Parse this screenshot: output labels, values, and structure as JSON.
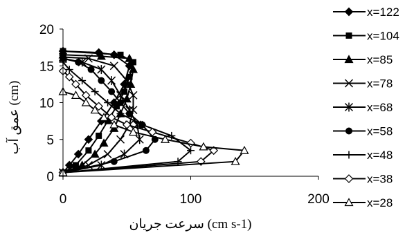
{
  "chart_data": {
    "type": "scatter",
    "title": "",
    "xlabel": "سرعت جریان (cm s-1)",
    "ylabel": "عمق آب (cm)",
    "xlim": [
      0,
      200
    ],
    "ylim": [
      0,
      20
    ],
    "xticks": [
      "0",
      "100",
      "200"
    ],
    "yticks": [
      "0",
      "5",
      "10",
      "15",
      "20"
    ],
    "grid": false,
    "legend_position": "right",
    "series": [
      {
        "name": "x=122",
        "marker": "diamond-filled",
        "points": [
          [
            0,
            0.5
          ],
          [
            5,
            1.5
          ],
          [
            12,
            3
          ],
          [
            20,
            5
          ],
          [
            30,
            7.5
          ],
          [
            40,
            10
          ],
          [
            48,
            12.5
          ],
          [
            52,
            15
          ],
          [
            40,
            16.5
          ],
          [
            28,
            16.8
          ],
          [
            0,
            17
          ]
        ]
      },
      {
        "name": "x=104",
        "marker": "square-filled",
        "points": [
          [
            0,
            0.5
          ],
          [
            10,
            1.5
          ],
          [
            20,
            3.5
          ],
          [
            28,
            5.5
          ],
          [
            35,
            7.5
          ],
          [
            42,
            9.5
          ],
          [
            48,
            11.5
          ],
          [
            52,
            13.5
          ],
          [
            55,
            15.5
          ],
          [
            45,
            16.5
          ],
          [
            0,
            17
          ]
        ]
      },
      {
        "name": "x=85",
        "marker": "triangle-filled",
        "points": [
          [
            0,
            0.5
          ],
          [
            15,
            1.5
          ],
          [
            25,
            3
          ],
          [
            32,
            4.5
          ],
          [
            40,
            6.5
          ],
          [
            45,
            8.5
          ],
          [
            50,
            10.5
          ],
          [
            53,
            12.5
          ],
          [
            55,
            14.5
          ],
          [
            52,
            16
          ],
          [
            30,
            16.3
          ],
          [
            0,
            16.5
          ]
        ]
      },
      {
        "name": "x=78",
        "marker": "x",
        "points": [
          [
            0,
            0.5
          ],
          [
            20,
            1.5
          ],
          [
            35,
            3
          ],
          [
            45,
            5
          ],
          [
            52,
            7
          ],
          [
            55,
            9
          ],
          [
            55,
            11
          ],
          [
            50,
            13
          ],
          [
            40,
            15
          ],
          [
            20,
            16
          ],
          [
            0,
            16.2
          ]
        ]
      },
      {
        "name": "x=68",
        "marker": "asterisk",
        "points": [
          [
            0,
            0.5
          ],
          [
            30,
            1.5
          ],
          [
            48,
            3
          ],
          [
            60,
            5
          ],
          [
            58,
            7
          ],
          [
            52,
            9
          ],
          [
            45,
            11
          ],
          [
            38,
            13
          ],
          [
            30,
            14.5
          ],
          [
            15,
            15.5
          ],
          [
            0,
            16
          ]
        ]
      },
      {
        "name": "x=58",
        "marker": "circle-filled",
        "points": [
          [
            0,
            0.5
          ],
          [
            40,
            2
          ],
          [
            65,
            3.5
          ],
          [
            72,
            5
          ],
          [
            62,
            7
          ],
          [
            52,
            8.5
          ],
          [
            45,
            10
          ],
          [
            38,
            11.5
          ],
          [
            30,
            13
          ],
          [
            22,
            14.5
          ],
          [
            12,
            15.5
          ],
          [
            0,
            16
          ]
        ]
      },
      {
        "name": "x=48",
        "marker": "plus",
        "points": [
          [
            0,
            0.5
          ],
          [
            90,
            2
          ],
          [
            100,
            3.5
          ],
          [
            85,
            5.5
          ],
          [
            62,
            7
          ],
          [
            45,
            8.5
          ],
          [
            35,
            10
          ],
          [
            25,
            11.5
          ],
          [
            15,
            13
          ],
          [
            5,
            14.5
          ],
          [
            0,
            15.5
          ]
        ]
      },
      {
        "name": "x=38",
        "marker": "diamond-open",
        "points": [
          [
            0,
            0.5
          ],
          [
            108,
            2
          ],
          [
            118,
            3.5
          ],
          [
            100,
            4.5
          ],
          [
            70,
            6
          ],
          [
            50,
            7
          ],
          [
            38,
            8
          ],
          [
            28,
            9.5
          ],
          [
            18,
            11
          ],
          [
            10,
            12.5
          ],
          [
            5,
            13.5
          ],
          [
            0,
            14.3
          ]
        ]
      },
      {
        "name": "x=28",
        "marker": "triangle-open",
        "points": [
          [
            0,
            0.5
          ],
          [
            135,
            2
          ],
          [
            142,
            3.5
          ],
          [
            110,
            4
          ],
          [
            80,
            5
          ],
          [
            55,
            6
          ],
          [
            40,
            7
          ],
          [
            32,
            8
          ],
          [
            25,
            9
          ],
          [
            18,
            10
          ],
          [
            10,
            11
          ],
          [
            0,
            11.5
          ]
        ]
      }
    ]
  }
}
